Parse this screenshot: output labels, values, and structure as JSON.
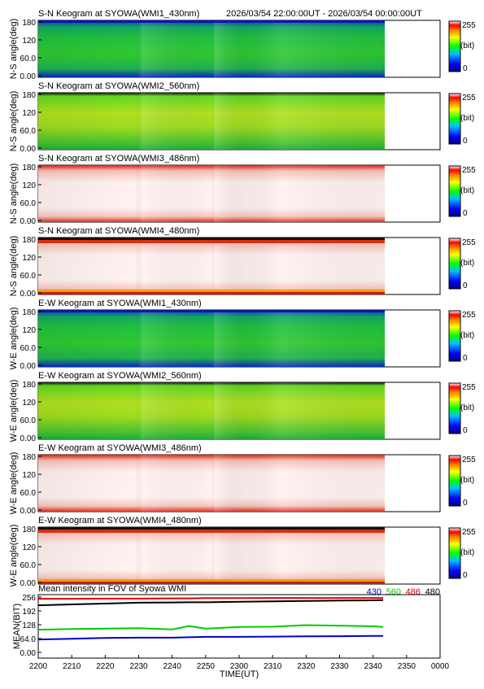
{
  "header": {
    "time_range": "2026/03/54 22:00:00UT - 2026/03/54 00:00:00UT"
  },
  "colorbar": {
    "max_label": "255",
    "unit_label": "(bit)",
    "min_label": "0"
  },
  "keogram_yticks": [
    "180",
    "120",
    "60.0",
    "0.00"
  ],
  "panels": [
    {
      "title": "S-N Keogram at SYOWA(WMI1_430nm)",
      "ylabel": "N-S angle(deg)",
      "palette": "green",
      "band": "blue"
    },
    {
      "title": "S-N Keogram at SYOWA(WMI2_560nm)",
      "ylabel": "N-S angle(deg)",
      "palette": "yellowgreen",
      "band": "none"
    },
    {
      "title": "S-N Keogram at SYOWA(WMI3_486nm)",
      "ylabel": "N-S angle(deg)",
      "palette": "white",
      "band": "red"
    },
    {
      "title": "S-N Keogram at SYOWA(WMI4_480nm)",
      "ylabel": "N-S angle(deg)",
      "palette": "white",
      "band": "red-strong"
    },
    {
      "title": "E-W Keogram at SYOWA(WMI1_430nm)",
      "ylabel": "W-E angle(deg)",
      "palette": "green",
      "band": "blue"
    },
    {
      "title": "E-W Keogram at SYOWA(WMI2_560nm)",
      "ylabel": "W-E angle(deg)",
      "palette": "yellowgreen",
      "band": "none"
    },
    {
      "title": "E-W Keogram at SYOWA(WMI3_486nm)",
      "ylabel": "W-E angle(deg)",
      "palette": "white",
      "band": "red"
    },
    {
      "title": "E-W Keogram at SYOWA(WMI4_480nm)",
      "ylabel": "W-E angle(deg)",
      "palette": "white",
      "band": "red-strong"
    }
  ],
  "chart_data": {
    "type": "line",
    "title": "Mean intensity in FOV of Syowa WMI",
    "xlabel": "TIME(UT)",
    "ylabel": "MEAN(BIT)",
    "x_ticks": [
      "2200",
      "2210",
      "2220",
      "2230",
      "2240",
      "2250",
      "2300",
      "2310",
      "2320",
      "2330",
      "2340",
      "2350",
      "0000"
    ],
    "y_ticks": [
      "256",
      "192",
      "128",
      "64.0",
      "0.00"
    ],
    "ylim": [
      0,
      256
    ],
    "x_minutes": [
      0,
      10,
      20,
      30,
      40,
      45,
      50,
      60,
      70,
      80,
      90,
      100,
      103
    ],
    "series": [
      {
        "name": "430",
        "color": "#0000cc",
        "values": [
          60,
          63,
          67,
          68,
          68,
          70,
          72,
          72,
          73,
          74,
          75,
          76,
          76
        ]
      },
      {
        "name": "560",
        "color": "#00cc00",
        "values": [
          105,
          108,
          110,
          112,
          106,
          122,
          110,
          118,
          119,
          126,
          124,
          121,
          118
        ]
      },
      {
        "name": "486",
        "color": "#dd0000",
        "values": [
          248,
          248,
          249,
          249,
          250,
          250,
          251,
          251,
          252,
          252,
          252,
          252,
          252
        ]
      },
      {
        "name": "480",
        "color": "#000000",
        "values": [
          218,
          222,
          226,
          230,
          231,
          232,
          232,
          234,
          236,
          238,
          240,
          241,
          242
        ]
      }
    ]
  }
}
